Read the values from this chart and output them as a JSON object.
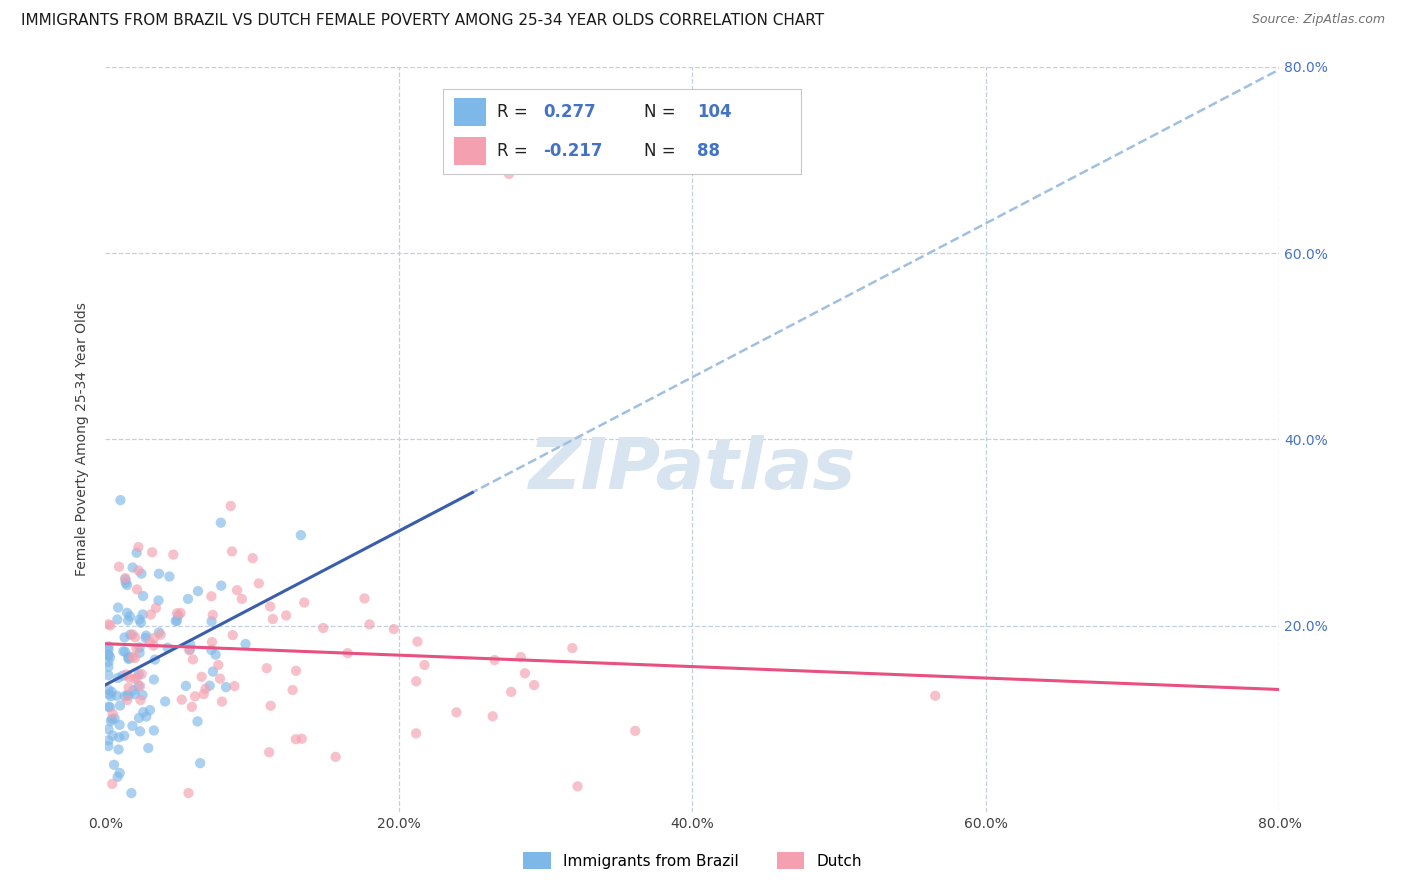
{
  "title": "IMMIGRANTS FROM BRAZIL VS DUTCH FEMALE POVERTY AMONG 25-34 YEAR OLDS CORRELATION CHART",
  "source": "Source: ZipAtlas.com",
  "ylabel": "Female Poverty Among 25-34 Year Olds",
  "xlim": [
    0.0,
    0.8
  ],
  "ylim": [
    0.0,
    0.8
  ],
  "xticks": [
    0.0,
    0.2,
    0.4,
    0.6,
    0.8
  ],
  "xticklabels": [
    "0.0%",
    "20.0%",
    "40.0%",
    "60.0%",
    "80.0%"
  ],
  "yticks": [
    0.0,
    0.2,
    0.4,
    0.6,
    0.8
  ],
  "right_ytick_vals": [
    0.8,
    0.6,
    0.4,
    0.2,
    0.0
  ],
  "right_yticklabels": [
    "80.0%",
    "60.0%",
    "40.0%",
    "20.0%",
    ""
  ],
  "brazil_R": 0.277,
  "brazil_N": 104,
  "dutch_R": -0.217,
  "dutch_N": 88,
  "brazil_color": "#7EB8E8",
  "dutch_color": "#F4A0B0",
  "brazil_line_color": "#3A5EAC",
  "dutch_line_color": "#E85080",
  "dashed_line_color": "#A0C0E0",
  "background_color": "#FFFFFF",
  "grid_color": "#C0D0E0",
  "title_color": "#1A1A1A",
  "source_color": "#707070",
  "legend_text_blue": "#4472C4",
  "watermark_color": "#D8E4F0",
  "title_fontsize": 11,
  "axis_label_fontsize": 10,
  "tick_fontsize": 10,
  "marker_size": 55,
  "marker_alpha": 0.65
}
